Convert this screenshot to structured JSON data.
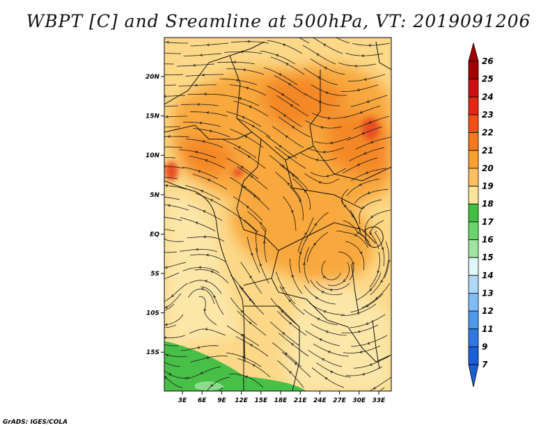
{
  "title": "WBPT [C] and Sreamline at 500hPa, VT: 2019091206",
  "credit": "GrADS: IGES/COLA",
  "lat_ticks": [
    "20N",
    "15N",
    "10N",
    "5N",
    "EQ",
    "5S",
    "10S",
    "15S"
  ],
  "lon_ticks": [
    "3E",
    "6E",
    "9E",
    "12E",
    "15E",
    "18E",
    "21E",
    "24E",
    "27E",
    "30E",
    "33E"
  ],
  "colorbar": {
    "labels": [
      "26",
      "25",
      "24",
      "23",
      "22",
      "21",
      "20",
      "19",
      "18",
      "17",
      "16",
      "15",
      "14",
      "13",
      "12",
      "11",
      "9",
      "7"
    ],
    "colors": [
      "#a00000",
      "#c81010",
      "#e02814",
      "#f05018",
      "#f47820",
      "#f8a030",
      "#fcc060",
      "#fce49c",
      "#40c040",
      "#6cd46c",
      "#a0e4a0",
      "#e0f8f8",
      "#b0d8f8",
      "#80bcf4",
      "#5098ec",
      "#3078e0",
      "#1c5ed4"
    ],
    "top_arrow_color": "#a00000",
    "bottom_arrow_color": "#1c5ed4"
  },
  "fill_colors": {
    "base": "#fcd888",
    "warm": "#f8a83c",
    "hot": "#f48828",
    "cool": "#fce6a8",
    "green": "#48c048",
    "light_green": "#8cdc8c",
    "red": "#e85020"
  }
}
